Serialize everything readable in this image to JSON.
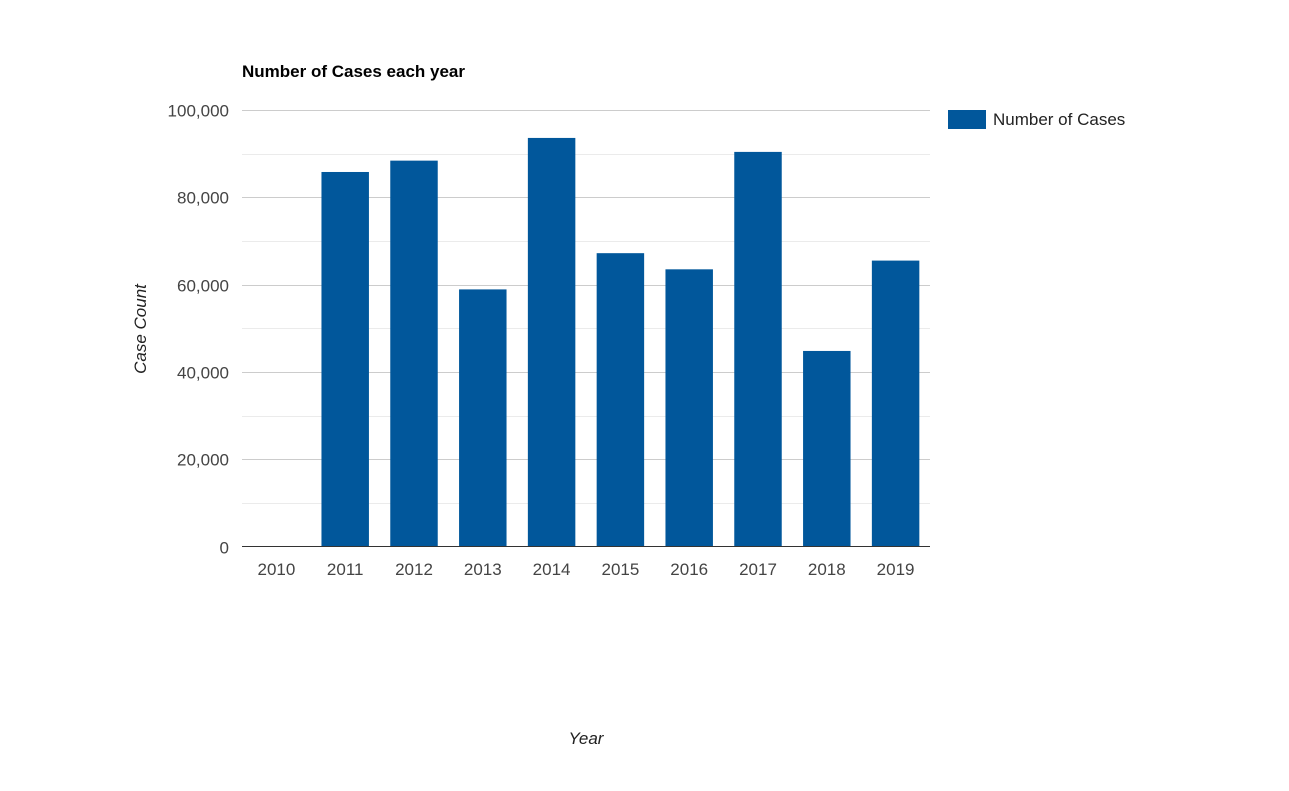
{
  "chart_data": {
    "type": "bar",
    "title": "Number of Cases each year",
    "xlabel": "Year",
    "ylabel": "Case Count",
    "categories": [
      "2010",
      "2011",
      "2012",
      "2013",
      "2014",
      "2015",
      "2016",
      "2017",
      "2018",
      "2019"
    ],
    "series": [
      {
        "name": "Number of Cases",
        "values": [
          0,
          85800,
          88400,
          58900,
          93600,
          67200,
          63500,
          90400,
          44800,
          65500
        ],
        "color": "#01579b"
      }
    ],
    "ylim": [
      0,
      100000
    ],
    "yticks": [
      0,
      20000,
      40000,
      60000,
      80000,
      100000
    ],
    "ytick_labels": [
      "0",
      "20,000",
      "40,000",
      "60,000",
      "80,000",
      "100,000"
    ],
    "grid": true,
    "legend_position": "right"
  }
}
